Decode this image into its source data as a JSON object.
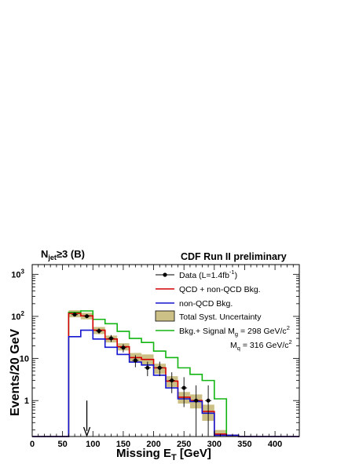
{
  "chart_data": {
    "type": "histogram",
    "title": "CDF Run II preliminary",
    "selection": "N_jet ≥3 (B)",
    "xlabel": "Missing E_T [GeV]",
    "ylabel": "Events/20 GeV",
    "xlim": [
      0,
      440
    ],
    "ylim": [
      0.14,
      1700
    ],
    "y_scale": "log",
    "x_ticks": [
      0,
      50,
      100,
      150,
      200,
      250,
      300,
      350,
      400
    ],
    "y_ticks": [
      {
        "value": 1,
        "label": "1"
      },
      {
        "value": 10,
        "label": "10"
      },
      {
        "value": 100,
        "label": "10^2"
      },
      {
        "value": 1000,
        "label": "10^3"
      }
    ],
    "bin_edges": [
      60,
      80,
      100,
      120,
      140,
      160,
      180,
      200,
      220,
      240,
      260,
      280,
      300,
      320,
      340
    ],
    "series": [
      {
        "name": "QCD + non-QCD Bkg.",
        "color": "#d40000",
        "values": [
          118,
          103,
          47,
          29,
          19,
          10.5,
          9.5,
          6.0,
          2.9,
          1.2,
          1.0,
          0.55,
          0.16,
          0.15
        ]
      },
      {
        "name": "non-QCD Bkg.",
        "color": "#1515d0",
        "values": [
          33,
          47,
          29,
          18.5,
          12.5,
          8.2,
          7.0,
          4.0,
          2.0,
          1.1,
          0.95,
          0.5,
          0.15,
          0.15
        ]
      },
      {
        "name": "Bkg.+ Signal",
        "color": "#12b512",
        "values": [
          125,
          135,
          85,
          67,
          44,
          30,
          24,
          15,
          10.5,
          6.0,
          4.2,
          3.0,
          1.1,
          0.15
        ]
      }
    ],
    "uncertainty_band": {
      "name": "Total Syst. Uncertainty",
      "color": "#cdc087",
      "low": [
        95,
        85,
        38,
        24,
        15.5,
        8.0,
        7.0,
        4.3,
        2.1,
        0.85,
        0.65,
        0.33,
        0.15,
        0.15
      ],
      "high": [
        140,
        122,
        56,
        35,
        23,
        13.5,
        12.5,
        7.5,
        3.8,
        1.6,
        1.4,
        0.8,
        0.2,
        0.15
      ]
    },
    "data_points": {
      "name": "Data (L=1.4fb^-1)",
      "x": [
        70,
        90,
        110,
        130,
        150,
        170,
        190,
        210,
        230,
        250,
        270,
        290
      ],
      "y": [
        110,
        101,
        45,
        30,
        18,
        9.0,
        6.0,
        6.0,
        3.0,
        2.0,
        1.0,
        1.0
      ],
      "y_low": [
        100,
        91,
        38.5,
        24.5,
        14.0,
        6.2,
        3.8,
        3.8,
        1.5,
        0.7,
        0.15,
        0.15
      ],
      "y_high": [
        121,
        111,
        52,
        36,
        22,
        12,
        8.4,
        8.4,
        4.7,
        3.6,
        2.3,
        2.3
      ]
    },
    "cut_arrow": {
      "x": 90,
      "y_from": 1.0,
      "y_to": 0.14
    },
    "signal_params": [
      "M_g = 298 GeV/c^2",
      "M_q = 316 GeV/c^2"
    ]
  }
}
